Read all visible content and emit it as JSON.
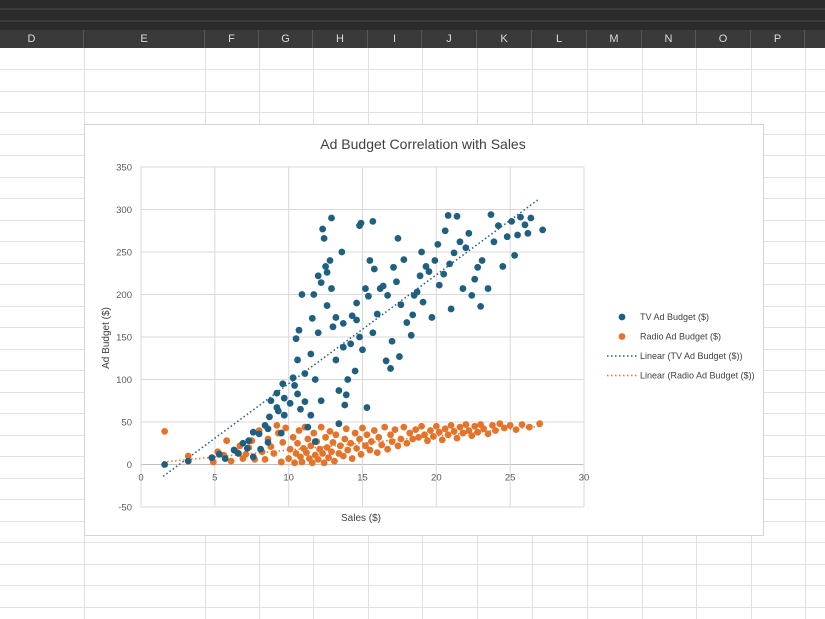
{
  "spreadsheet": {
    "columns": [
      "D",
      "E",
      "F",
      "G",
      "H",
      "I",
      "J",
      "K",
      "L",
      "M",
      "N",
      "O",
      "P"
    ]
  },
  "chart_data": {
    "type": "scatter",
    "title": "Ad Budget Correlation with Sales",
    "xlabel": "Sales ($)",
    "ylabel": "Ad Budget ($)",
    "xlim": [
      0,
      30
    ],
    "ylim": [
      -50,
      350
    ],
    "xticks": [
      "0",
      "5",
      "10",
      "15",
      "20",
      "25",
      "30"
    ],
    "yticks": [
      "-50",
      "0",
      "50",
      "100",
      "150",
      "200",
      "250",
      "300",
      "350"
    ],
    "grid": true,
    "legend_position": "right",
    "series": [
      {
        "name": "TV Ad Budget ($)",
        "color": "#1f5f7f",
        "points": [
          [
            1.6,
            0
          ],
          [
            3.2,
            4
          ],
          [
            4.8,
            8
          ],
          [
            5.3,
            12
          ],
          [
            5.7,
            7
          ],
          [
            6.3,
            17
          ],
          [
            6.6,
            13
          ],
          [
            6.9,
            25
          ],
          [
            7.2,
            19
          ],
          [
            7.3,
            28
          ],
          [
            7.6,
            9
          ],
          [
            7.6,
            38
          ],
          [
            8.0,
            36
          ],
          [
            8.1,
            18
          ],
          [
            8.4,
            46
          ],
          [
            8.6,
            42
          ],
          [
            8.6,
            26
          ],
          [
            8.7,
            56
          ],
          [
            8.8,
            75
          ],
          [
            9.2,
            84
          ],
          [
            9.2,
            67
          ],
          [
            9.3,
            63
          ],
          [
            9.5,
            37
          ],
          [
            9.7,
            58
          ],
          [
            9.7,
            78
          ],
          [
            9.6,
            95
          ],
          [
            10.1,
            72
          ],
          [
            10.3,
            102
          ],
          [
            10.4,
            93
          ],
          [
            10.5,
            148
          ],
          [
            10.6,
            123
          ],
          [
            10.6,
            83
          ],
          [
            10.7,
            158
          ],
          [
            10.8,
            65
          ],
          [
            10.9,
            200
          ],
          [
            11.1,
            107
          ],
          [
            11.1,
            74
          ],
          [
            11.3,
            44
          ],
          [
            11.5,
            58
          ],
          [
            11.5,
            130
          ],
          [
            11.6,
            172
          ],
          [
            11.7,
            200
          ],
          [
            11.8,
            100
          ],
          [
            11.8,
            27
          ],
          [
            12.0,
            155
          ],
          [
            12.0,
            222
          ],
          [
            12.2,
            214
          ],
          [
            12.2,
            75
          ],
          [
            12.4,
            266
          ],
          [
            12.3,
            277
          ],
          [
            12.5,
            233
          ],
          [
            12.6,
            226
          ],
          [
            12.6,
            187
          ],
          [
            12.8,
            240
          ],
          [
            12.9,
            290
          ],
          [
            12.9,
            207
          ],
          [
            13.0,
            162
          ],
          [
            13.2,
            173
          ],
          [
            13.2,
            123
          ],
          [
            13.4,
            48
          ],
          [
            13.4,
            87
          ],
          [
            13.6,
            250
          ],
          [
            13.7,
            166
          ],
          [
            13.7,
            138
          ],
          [
            13.8,
            70
          ],
          [
            13.9,
            82
          ],
          [
            14.0,
            100
          ],
          [
            14.2,
            142
          ],
          [
            14.3,
            175
          ],
          [
            14.5,
            110
          ],
          [
            14.6,
            190
          ],
          [
            14.6,
            170
          ],
          [
            14.8,
            281
          ],
          [
            14.8,
            150
          ],
          [
            14.9,
            284
          ],
          [
            15.0,
            135
          ],
          [
            15.2,
            207
          ],
          [
            15.3,
            67
          ],
          [
            15.4,
            198
          ],
          [
            15.5,
            240
          ],
          [
            15.7,
            286
          ],
          [
            15.7,
            155
          ],
          [
            15.8,
            230
          ],
          [
            16.0,
            177
          ],
          [
            16.2,
            207
          ],
          [
            16.4,
            210
          ],
          [
            16.6,
            122
          ],
          [
            16.7,
            199
          ],
          [
            16.9,
            113
          ],
          [
            17.0,
            145
          ],
          [
            17.1,
            232
          ],
          [
            17.3,
            215
          ],
          [
            17.4,
            266
          ],
          [
            17.5,
            127
          ],
          [
            17.6,
            188
          ],
          [
            17.8,
            241
          ],
          [
            18.0,
            167
          ],
          [
            18.3,
            152
          ],
          [
            18.4,
            176
          ],
          [
            18.5,
            199
          ],
          [
            18.7,
            203
          ],
          [
            18.9,
            222
          ],
          [
            19.0,
            250
          ],
          [
            19.1,
            191
          ],
          [
            19.3,
            233
          ],
          [
            19.5,
            227
          ],
          [
            19.7,
            173
          ],
          [
            19.9,
            240
          ],
          [
            20.1,
            259
          ],
          [
            20.2,
            211
          ],
          [
            20.5,
            224
          ],
          [
            20.6,
            275
          ],
          [
            20.8,
            293
          ],
          [
            20.9,
            236
          ],
          [
            21.0,
            183
          ],
          [
            21.2,
            249
          ],
          [
            21.4,
            292
          ],
          [
            21.6,
            262
          ],
          [
            21.8,
            207
          ],
          [
            22.0,
            255
          ],
          [
            22.2,
            272
          ],
          [
            22.4,
            199
          ],
          [
            22.6,
            218
          ],
          [
            22.8,
            232
          ],
          [
            23.0,
            186
          ],
          [
            23.1,
            240
          ],
          [
            23.5,
            207
          ],
          [
            23.7,
            294
          ],
          [
            23.9,
            262
          ],
          [
            24.2,
            281
          ],
          [
            24.5,
            233
          ],
          [
            24.8,
            268
          ],
          [
            25.1,
            286
          ],
          [
            25.3,
            246
          ],
          [
            25.5,
            270
          ],
          [
            25.7,
            291
          ],
          [
            26.0,
            282
          ],
          [
            26.2,
            272
          ],
          [
            26.4,
            290
          ],
          [
            27.2,
            276
          ]
        ]
      },
      {
        "name": "Radio Ad Budget ($)",
        "color": "#e5732a",
        "points": [
          [
            1.6,
            39
          ],
          [
            3.2,
            10
          ],
          [
            4.9,
            3
          ],
          [
            5.2,
            15
          ],
          [
            5.6,
            11
          ],
          [
            5.8,
            28
          ],
          [
            6.1,
            4
          ],
          [
            6.4,
            16
          ],
          [
            6.7,
            22
          ],
          [
            6.9,
            7
          ],
          [
            7.1,
            12
          ],
          [
            7.3,
            20
          ],
          [
            7.5,
            28
          ],
          [
            7.7,
            6
          ],
          [
            8.0,
            40
          ],
          [
            8.2,
            15
          ],
          [
            8.4,
            6
          ],
          [
            8.6,
            30
          ],
          [
            8.8,
            21
          ],
          [
            9.0,
            13
          ],
          [
            9.2,
            46
          ],
          [
            9.3,
            37
          ],
          [
            9.5,
            3
          ],
          [
            9.6,
            26
          ],
          [
            9.8,
            43
          ],
          [
            10.0,
            7
          ],
          [
            10.1,
            18
          ],
          [
            10.3,
            32
          ],
          [
            10.4,
            2
          ],
          [
            10.5,
            13
          ],
          [
            10.6,
            25
          ],
          [
            10.7,
            40
          ],
          [
            10.8,
            9
          ],
          [
            10.9,
            3
          ],
          [
            11.0,
            19
          ],
          [
            11.1,
            44
          ],
          [
            11.2,
            14
          ],
          [
            11.3,
            30
          ],
          [
            11.4,
            7
          ],
          [
            11.5,
            22
          ],
          [
            11.6,
            2
          ],
          [
            11.7,
            37
          ],
          [
            11.8,
            11
          ],
          [
            11.9,
            27
          ],
          [
            12.0,
            6
          ],
          [
            12.1,
            18
          ],
          [
            12.2,
            44
          ],
          [
            12.3,
            13
          ],
          [
            12.4,
            2
          ],
          [
            12.5,
            32
          ],
          [
            12.6,
            20
          ],
          [
            12.7,
            8
          ],
          [
            12.8,
            39
          ],
          [
            12.9,
            15
          ],
          [
            13.0,
            26
          ],
          [
            13.1,
            4
          ],
          [
            13.2,
            35
          ],
          [
            13.4,
            13
          ],
          [
            13.5,
            22
          ],
          [
            13.7,
            10
          ],
          [
            13.8,
            30
          ],
          [
            13.9,
            42
          ],
          [
            14.0,
            17
          ],
          [
            14.2,
            25
          ],
          [
            14.3,
            7
          ],
          [
            14.5,
            37
          ],
          [
            14.6,
            19
          ],
          [
            14.8,
            30
          ],
          [
            14.9,
            12
          ],
          [
            15.0,
            43
          ],
          [
            15.2,
            22
          ],
          [
            15.3,
            35
          ],
          [
            15.5,
            17
          ],
          [
            15.6,
            27
          ],
          [
            15.8,
            40
          ],
          [
            16.0,
            14
          ],
          [
            16.1,
            32
          ],
          [
            16.3,
            23
          ],
          [
            16.5,
            44
          ],
          [
            16.7,
            18
          ],
          [
            16.9,
            35
          ],
          [
            17.0,
            27
          ],
          [
            17.2,
            41
          ],
          [
            17.4,
            22
          ],
          [
            17.6,
            30
          ],
          [
            17.8,
            44
          ],
          [
            18.0,
            25
          ],
          [
            18.2,
            37
          ],
          [
            18.4,
            30
          ],
          [
            18.6,
            41
          ],
          [
            18.8,
            32
          ],
          [
            19.0,
            45
          ],
          [
            19.2,
            35
          ],
          [
            19.4,
            28
          ],
          [
            19.6,
            40
          ],
          [
            19.8,
            33
          ],
          [
            20.0,
            45
          ],
          [
            20.2,
            38
          ],
          [
            20.4,
            29
          ],
          [
            20.6,
            42
          ],
          [
            20.8,
            35
          ],
          [
            21.0,
            46
          ],
          [
            21.2,
            39
          ],
          [
            21.4,
            31
          ],
          [
            21.6,
            44
          ],
          [
            21.8,
            37
          ],
          [
            22.0,
            47
          ],
          [
            22.2,
            40
          ],
          [
            22.4,
            34
          ],
          [
            22.6,
            45
          ],
          [
            22.8,
            38
          ],
          [
            23.0,
            47
          ],
          [
            23.2,
            42
          ],
          [
            23.5,
            36
          ],
          [
            23.8,
            46
          ],
          [
            24.0,
            40
          ],
          [
            24.3,
            48
          ],
          [
            24.6,
            43
          ],
          [
            25.0,
            46
          ],
          [
            25.4,
            41
          ],
          [
            25.8,
            47
          ],
          [
            26.3,
            44
          ],
          [
            27.0,
            48
          ]
        ]
      }
    ],
    "trendlines": [
      {
        "name": "Linear (TV Ad Budget ($))",
        "color": "#1f5f7f",
        "x": [
          1.5,
          27.0
        ],
        "y": [
          -14,
          313
        ]
      },
      {
        "name": "Linear (Radio Ad Budget ($))",
        "color": "#e5732a",
        "x": [
          1.5,
          27.0
        ],
        "y": [
          3,
          45
        ]
      }
    ]
  }
}
